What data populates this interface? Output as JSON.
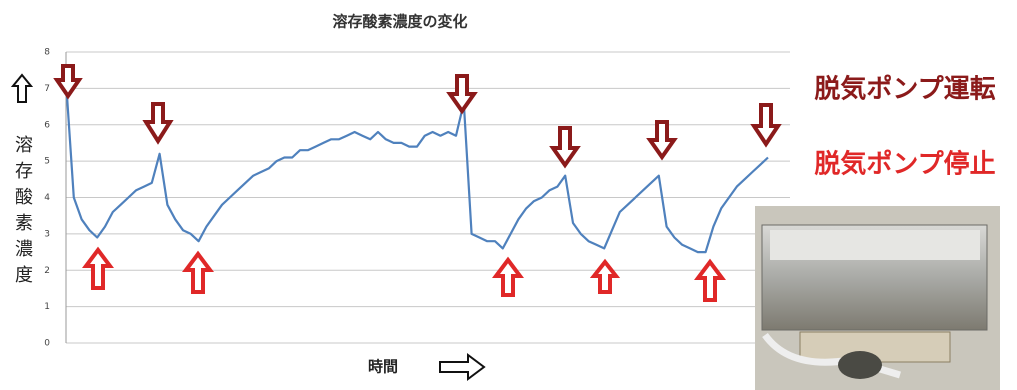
{
  "chart_data": {
    "type": "line",
    "title": "溶存酸素濃度の変化",
    "y_label": "溶存酸素濃度",
    "x_label": "時間",
    "ylim": [
      0,
      8
    ],
    "yticks": [
      0,
      1,
      2,
      3,
      4,
      5,
      6,
      7,
      8
    ],
    "grid": true,
    "series": [
      {
        "color": "#4f81bd",
        "values": [
          7.2,
          4.0,
          3.4,
          3.1,
          2.9,
          3.2,
          3.6,
          3.8,
          4.0,
          4.2,
          4.3,
          4.4,
          5.2,
          3.8,
          3.4,
          3.1,
          3.0,
          2.8,
          3.2,
          3.5,
          3.8,
          4.0,
          4.2,
          4.4,
          4.6,
          4.7,
          4.8,
          5.0,
          5.1,
          5.1,
          5.3,
          5.3,
          5.4,
          5.5,
          5.6,
          5.6,
          5.7,
          5.8,
          5.7,
          5.6,
          5.8,
          5.6,
          5.5,
          5.5,
          5.4,
          5.4,
          5.7,
          5.8,
          5.7,
          5.8,
          5.7,
          6.6,
          3.0,
          2.9,
          2.8,
          2.8,
          2.6,
          3.0,
          3.4,
          3.7,
          3.9,
          4.0,
          4.2,
          4.3,
          4.6,
          3.3,
          3.0,
          2.8,
          2.7,
          2.6,
          3.1,
          3.6,
          3.8,
          4.0,
          4.2,
          4.4,
          4.6,
          3.2,
          2.9,
          2.7,
          2.6,
          2.5,
          2.5,
          3.2,
          3.7,
          4.0,
          4.3,
          4.5,
          4.7,
          4.9,
          5.1
        ]
      }
    ],
    "annotations": [
      {
        "text": "脱気ポンプ運転",
        "color": "#8b1a1a"
      },
      {
        "text": "脱気ポンプ停止",
        "color": "#e02828"
      }
    ]
  }
}
